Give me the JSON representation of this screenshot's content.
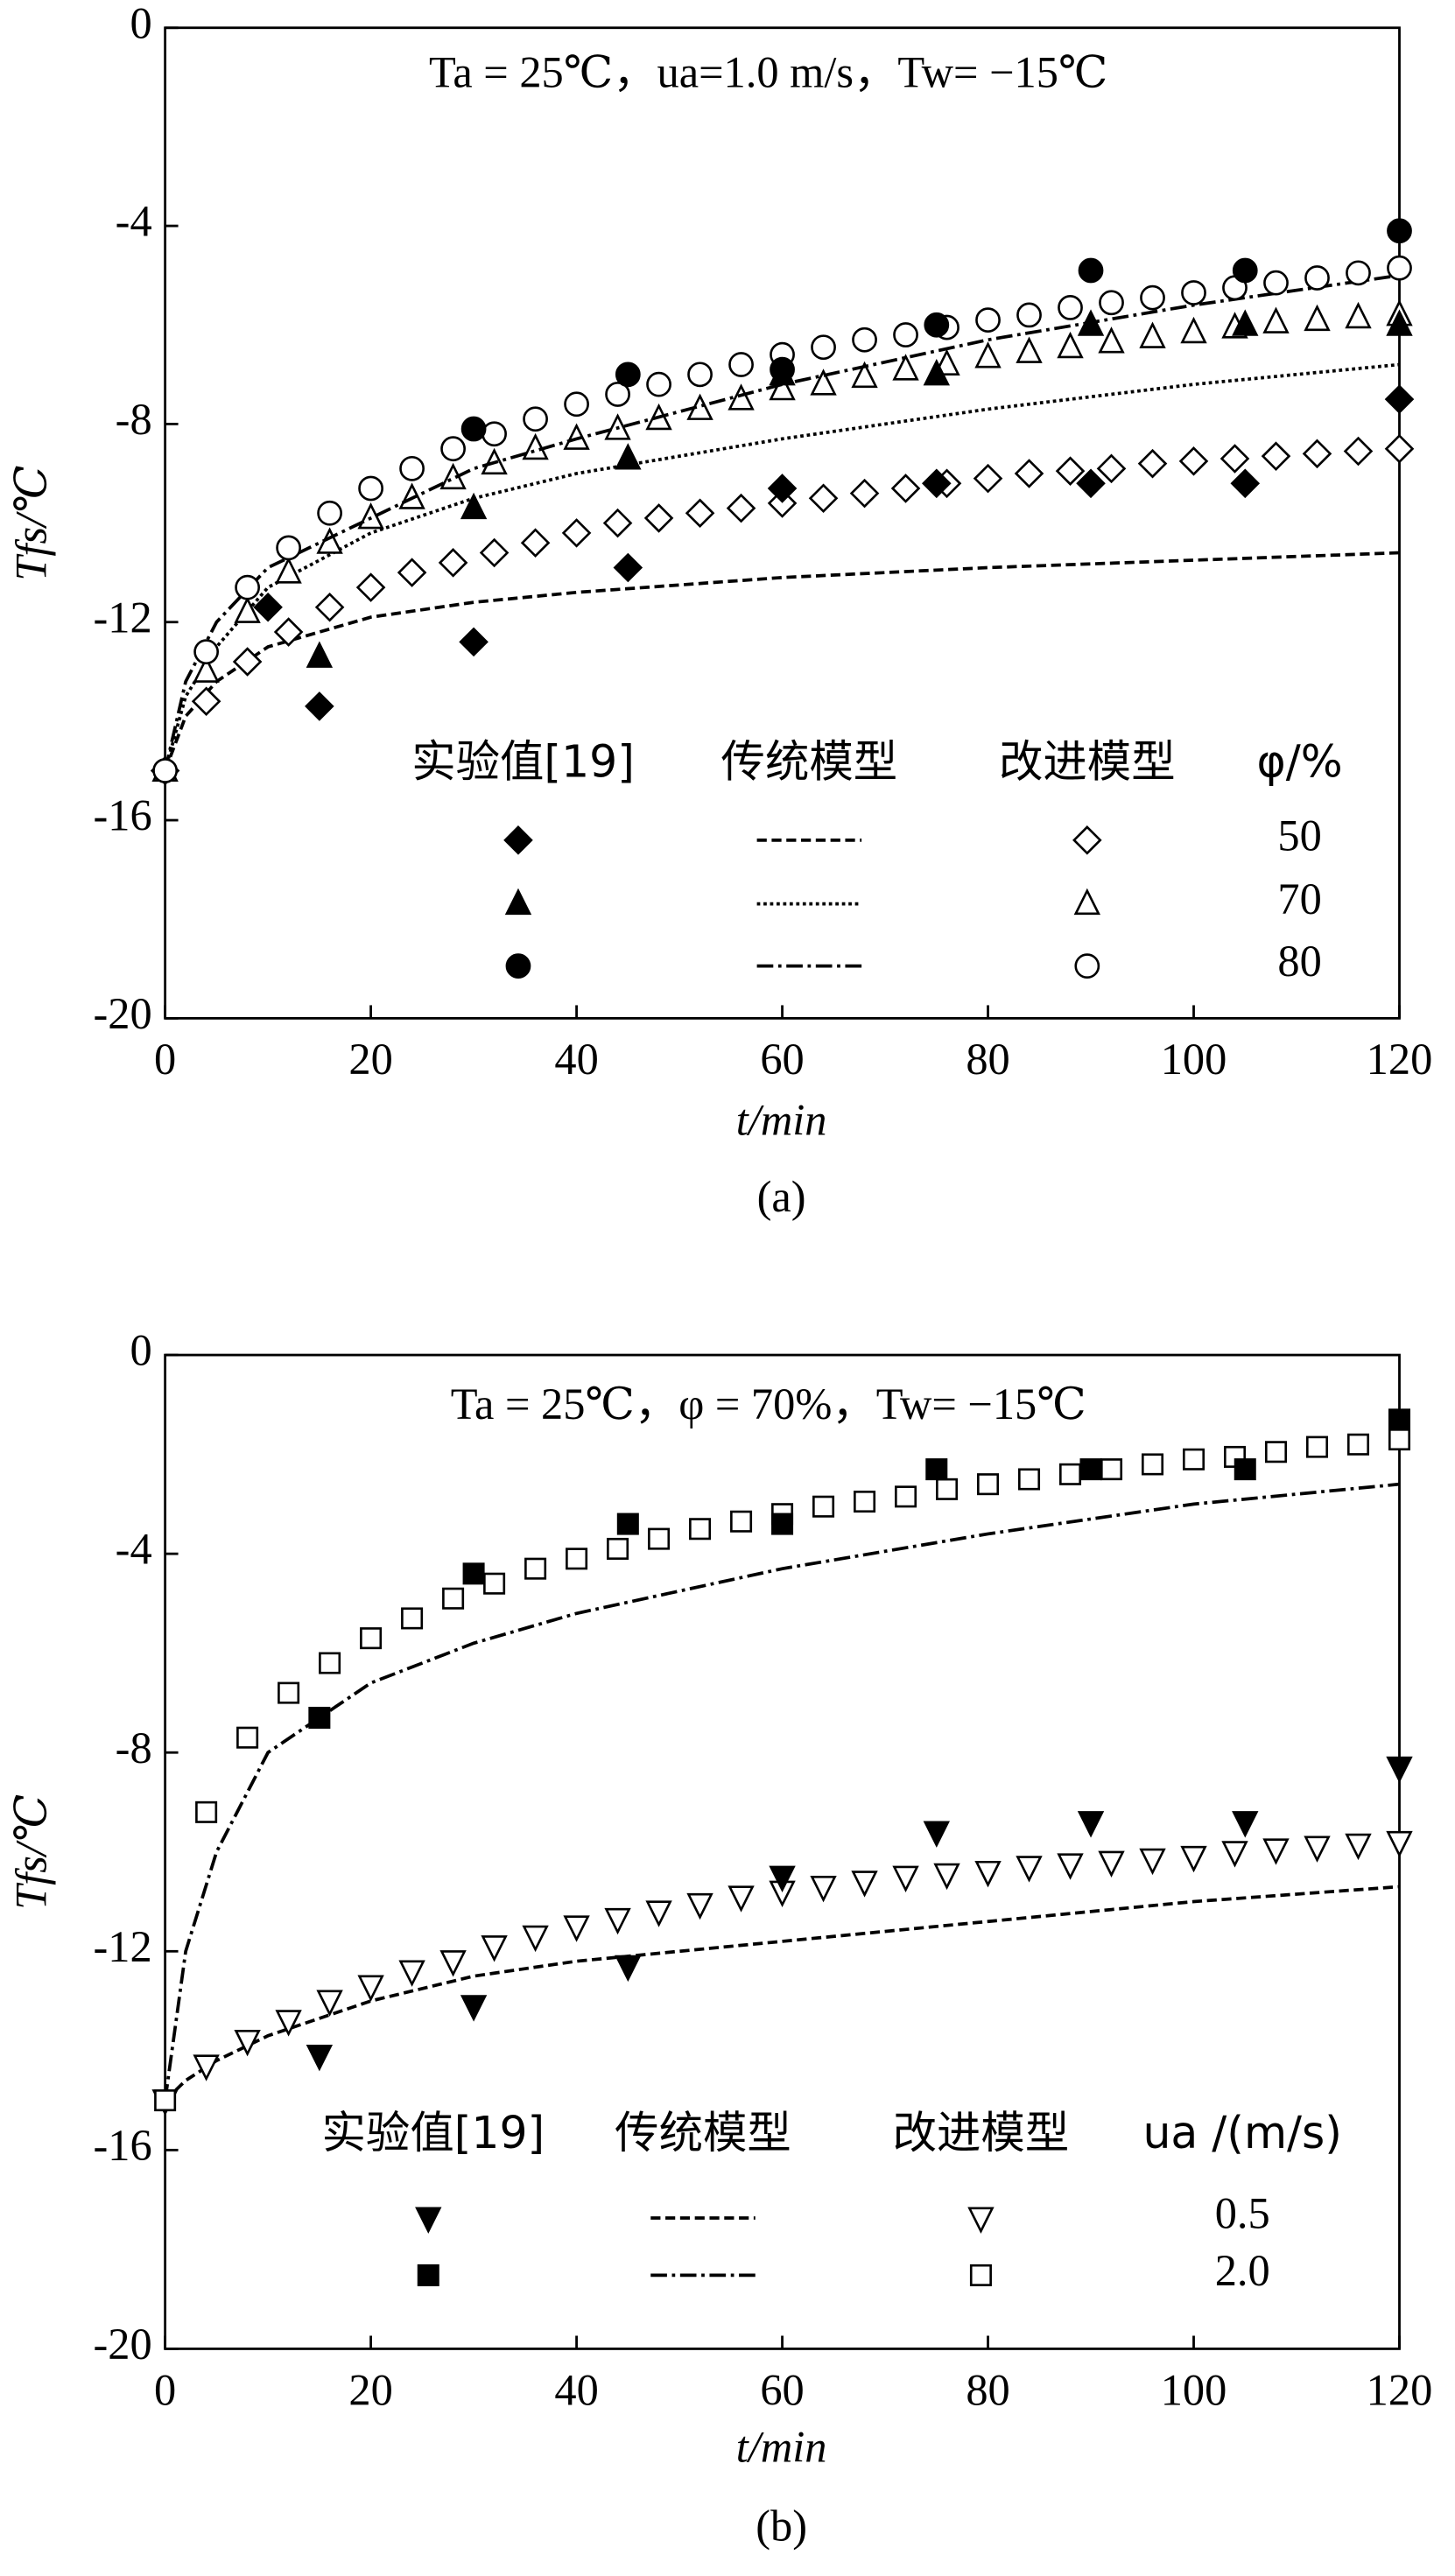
{
  "chart_data": [
    {
      "type": "scatter",
      "annotation": "Ta = 25℃，ua=1.0 m/s，Tw= −15℃",
      "xlabel": "t/min",
      "ylabel": "Tfs/℃",
      "caption": "(a)",
      "xlim": [
        0,
        120
      ],
      "ylim": [
        -20,
        0
      ],
      "xticks": [
        0,
        20,
        40,
        60,
        80,
        100,
        120
      ],
      "yticks": [
        0,
        -4,
        -8,
        -12,
        -16,
        -20
      ],
      "legend_header": [
        "实验值[19]",
        "传统模型",
        "改进模型",
        "φ/%"
      ],
      "curve_x": [
        0,
        2,
        5,
        10,
        20,
        30,
        40,
        60,
        80,
        100,
        120
      ],
      "model_x": [
        0,
        4,
        8,
        12,
        16,
        20,
        24,
        28,
        32,
        36,
        40,
        44,
        48,
        52,
        56,
        60,
        64,
        68,
        72,
        76,
        80,
        84,
        88,
        92,
        96,
        100,
        104,
        108,
        112,
        116,
        120
      ],
      "groups": [
        {
          "name": "50",
          "experimental": {
            "marker": "diamond",
            "filled": true,
            "x": [
              10,
              15,
              30,
              45,
              60,
              75,
              90,
              105,
              120
            ],
            "y": [
              -11.7,
              -13.7,
              -12.4,
              -10.9,
              -9.3,
              -9.2,
              -9.2,
              -9.2,
              -7.5
            ]
          },
          "traditional": {
            "dash": "dashed",
            "y": [
              -15,
              -13.9,
              -13.2,
              -12.5,
              -11.9,
              -11.6,
              -11.4,
              -11.1,
              -10.9,
              -10.75,
              -10.6
            ]
          },
          "improved": {
            "marker": "diamond",
            "filled": false,
            "y": [
              -15,
              -13.6,
              -12.8,
              -12.2,
              -11.7,
              -11.3,
              -11.0,
              -10.8,
              -10.6,
              -10.4,
              -10.2,
              -10.0,
              -9.9,
              -9.8,
              -9.7,
              -9.6,
              -9.5,
              -9.4,
              -9.3,
              -9.2,
              -9.1,
              -9.0,
              -8.95,
              -8.9,
              -8.8,
              -8.75,
              -8.7,
              -8.65,
              -8.6,
              -8.55,
              -8.5
            ]
          }
        },
        {
          "name": "70",
          "experimental": {
            "marker": "triangle-up",
            "filled": true,
            "x": [
              15,
              30,
              45,
              60,
              75,
              90,
              105,
              120
            ],
            "y": [
              -12.7,
              -9.7,
              -8.7,
              -7.0,
              -7.0,
              -6.0,
              -6.0,
              -6.0
            ]
          },
          "traditional": {
            "dash": "dotted",
            "y": [
              -15,
              -13.5,
              -12.5,
              -11.3,
              -10.2,
              -9.5,
              -9.0,
              -8.3,
              -7.7,
              -7.2,
              -6.8
            ]
          },
          "improved": {
            "marker": "triangle-up",
            "filled": false,
            "y": [
              -15,
              -13.0,
              -11.8,
              -11.0,
              -10.4,
              -9.9,
              -9.5,
              -9.1,
              -8.8,
              -8.5,
              -8.3,
              -8.1,
              -7.9,
              -7.7,
              -7.5,
              -7.3,
              -7.2,
              -7.05,
              -6.9,
              -6.8,
              -6.65,
              -6.55,
              -6.45,
              -6.35,
              -6.25,
              -6.15,
              -6.05,
              -5.95,
              -5.9,
              -5.85,
              -5.8
            ]
          }
        },
        {
          "name": "80",
          "experimental": {
            "marker": "circle",
            "filled": true,
            "x": [
              30,
              45,
              60,
              75,
              90,
              105,
              120
            ],
            "y": [
              -8.1,
              -7.0,
              -6.9,
              -6.0,
              -4.9,
              -4.9,
              -4.1
            ]
          },
          "traditional": {
            "dash": "dashdot",
            "y": [
              -15,
              -13.2,
              -12.0,
              -10.9,
              -9.9,
              -8.9,
              -8.3,
              -7.2,
              -6.3,
              -5.6,
              -5.0
            ]
          },
          "improved": {
            "marker": "circle",
            "filled": false,
            "y": [
              -15,
              -12.6,
              -11.3,
              -10.5,
              -9.8,
              -9.3,
              -8.9,
              -8.5,
              -8.2,
              -7.9,
              -7.6,
              -7.4,
              -7.2,
              -7.0,
              -6.8,
              -6.6,
              -6.45,
              -6.3,
              -6.2,
              -6.05,
              -5.9,
              -5.8,
              -5.65,
              -5.55,
              -5.45,
              -5.35,
              -5.25,
              -5.15,
              -5.05,
              -4.95,
              -4.85
            ]
          }
        }
      ]
    },
    {
      "type": "scatter",
      "annotation": "Ta = 25℃，φ = 70%，Tw= −15℃",
      "xlabel": "t/min",
      "ylabel": "Tfs/℃",
      "caption": "(b)",
      "xlim": [
        0,
        120
      ],
      "ylim": [
        -20,
        0
      ],
      "xticks": [
        0,
        20,
        40,
        60,
        80,
        100,
        120
      ],
      "yticks": [
        0,
        -4,
        -8,
        -12,
        -16,
        -20
      ],
      "legend_header": [
        "实验值[19]",
        "传统模型",
        "改进模型",
        "ua /(m/s)"
      ],
      "curve_x": [
        0,
        2,
        5,
        10,
        20,
        30,
        40,
        60,
        80,
        100,
        120
      ],
      "model_x": [
        0,
        4,
        8,
        12,
        16,
        20,
        24,
        28,
        32,
        36,
        40,
        44,
        48,
        52,
        56,
        60,
        64,
        68,
        72,
        76,
        80,
        84,
        88,
        92,
        96,
        100,
        104,
        108,
        112,
        116,
        120
      ],
      "groups": [
        {
          "name": "0.5",
          "experimental": {
            "marker": "triangle-down",
            "filled": true,
            "x": [
              15,
              30,
              45,
              60,
              75,
              90,
              105,
              120
            ],
            "y": [
              -14.1,
              -13.1,
              -12.3,
              -10.5,
              -9.6,
              -9.4,
              -9.4,
              -8.3
            ]
          },
          "traditional": {
            "dash": "dashed",
            "y": [
              -15,
              -14.6,
              -14.2,
              -13.7,
              -13.0,
              -12.5,
              -12.2,
              -11.8,
              -11.4,
              -11.0,
              -10.7
            ]
          },
          "improved": {
            "marker": "triangle-down",
            "filled": false,
            "y": [
              -15,
              -14.3,
              -13.8,
              -13.4,
              -13.0,
              -12.7,
              -12.4,
              -12.2,
              -11.9,
              -11.7,
              -11.5,
              -11.35,
              -11.2,
              -11.05,
              -10.9,
              -10.8,
              -10.7,
              -10.6,
              -10.5,
              -10.45,
              -10.4,
              -10.3,
              -10.25,
              -10.2,
              -10.15,
              -10.1,
              -10.0,
              -9.95,
              -9.9,
              -9.85,
              -9.8
            ]
          }
        },
        {
          "name": "2.0",
          "experimental": {
            "marker": "square",
            "filled": true,
            "x": [
              15,
              30,
              45,
              60,
              75,
              90,
              105,
              120
            ],
            "y": [
              -7.3,
              -4.4,
              -3.4,
              -3.4,
              -2.3,
              -2.3,
              -2.3,
              -1.3
            ]
          },
          "traditional": {
            "dash": "dashdot",
            "y": [
              -15,
              -12.0,
              -10.0,
              -8.0,
              -6.6,
              -5.8,
              -5.2,
              -4.3,
              -3.6,
              -3.0,
              -2.6
            ]
          },
          "improved": {
            "marker": "square",
            "filled": false,
            "y": [
              -15,
              -9.2,
              -7.7,
              -6.8,
              -6.2,
              -5.7,
              -5.3,
              -4.9,
              -4.6,
              -4.3,
              -4.1,
              -3.9,
              -3.7,
              -3.5,
              -3.35,
              -3.2,
              -3.05,
              -2.95,
              -2.85,
              -2.7,
              -2.6,
              -2.5,
              -2.4,
              -2.3,
              -2.2,
              -2.1,
              -2.05,
              -1.95,
              -1.85,
              -1.8,
              -1.7
            ]
          }
        }
      ]
    }
  ]
}
